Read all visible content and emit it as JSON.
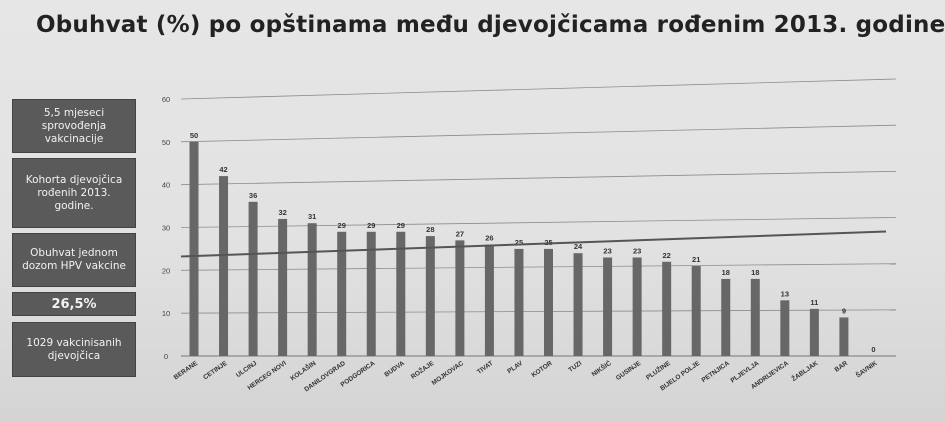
{
  "title": "Obuhvat (%) po opštinama među djevojčicama rođenim 2013. godine",
  "sidebar": [
    {
      "text": "5,5 mjeseci sprovođenja vakcinacije"
    },
    {
      "text": "Kohorta djevojčica rođenih 2013. godine."
    },
    {
      "text": "Obuhvat jednom dozom HPV vakcine"
    },
    {
      "text": "26,5%"
    },
    {
      "text": "1029 vakcinisanih djevojčica"
    }
  ],
  "colors": {
    "bar": "#676767",
    "grid": "#8c8c8c",
    "reference_line": "#555555"
  },
  "chart_data": {
    "type": "bar",
    "title": "Obuhvat (%) po opštinama među djevojčicama rođenim 2013. godine",
    "xlabel": "",
    "ylabel": "",
    "ylim": [
      0,
      60
    ],
    "yticks": [
      0,
      10,
      20,
      30,
      40,
      50,
      60
    ],
    "grid": true,
    "categories": [
      "BERANE",
      "CETINJE",
      "ULCINJ",
      "HERCEG NOVI",
      "KOLAŠIN",
      "DANILOVGRAD",
      "PODGORICA",
      "BUDVA",
      "ROŽAJE",
      "MOJKOVAC",
      "TIVAT",
      "PLAV",
      "KOTOR",
      "TUZI",
      "NIKŠIĆ",
      "GUSINJE",
      "PLUŽINE",
      "BIJELO POLJE",
      "PETNJICA",
      "PLJEVLJA",
      "ANDRIJEVICA",
      "ŽABLJAK",
      "BAR",
      "ŠAVNIK"
    ],
    "values": [
      50,
      42,
      36,
      32,
      31,
      29,
      29,
      29,
      28,
      27,
      26,
      25,
      25,
      24,
      23,
      23,
      22,
      21,
      18,
      18,
      13,
      11,
      9,
      0
    ],
    "value_labels": [
      "50",
      "42",
      "36",
      "32",
      "31",
      "29",
      "29",
      "29",
      "28",
      "27",
      "26",
      "25",
      "25",
      "24",
      "23",
      "23",
      "22",
      "21",
      "18",
      "18",
      "13",
      "11",
      "9",
      "0"
    ],
    "reference_line": 26.5
  }
}
